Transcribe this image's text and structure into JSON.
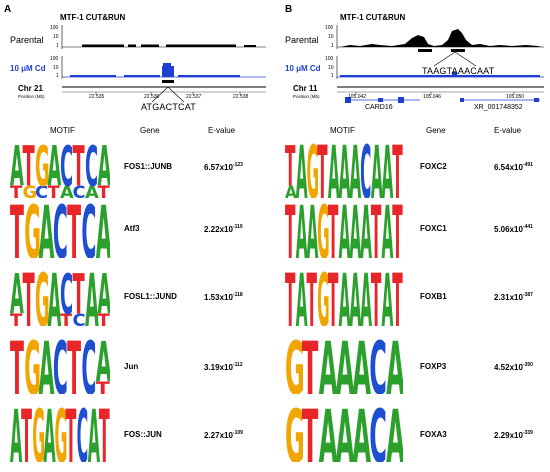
{
  "panelA": {
    "letter": "A",
    "title": "MTF-1 CUT&RUN",
    "tracks": [
      {
        "label": "Parental",
        "ticks": [
          "100",
          "10",
          "1"
        ]
      },
      {
        "label": "10 μM Cd",
        "ticks": [
          "100",
          "10",
          "1"
        ]
      }
    ],
    "chromosome": "Chr 21",
    "position_label": "Position (Mb)",
    "positions": [
      "22.535",
      "22.536",
      "22.537",
      "22.538"
    ],
    "sequence": "ATGACTCAT"
  },
  "panelB": {
    "letter": "B",
    "title": "MTF-1 CUT&RUN",
    "tracks": [
      {
        "label": "Parental",
        "ticks": [
          "100",
          "10",
          "1"
        ]
      },
      {
        "label": "10 μM Cd",
        "ticks": [
          "100",
          "10",
          "1"
        ]
      }
    ],
    "chromosome": "Chr 11",
    "position_label": "Position (Mb)",
    "positions": [
      "105.042",
      "105.046",
      "105.050"
    ],
    "sequence": "TAAGTAAACAAT",
    "genes": [
      "CARD16",
      "XR_001748352"
    ]
  },
  "tableA": {
    "headers": {
      "motif": "MOTIF",
      "gene": "Gene",
      "evalue": "E-value"
    },
    "rows": [
      {
        "gene": "FOS1::JUNB",
        "mant": "6.57x10",
        "exp": "-123"
      },
      {
        "gene": "Atf3",
        "mant": "2.22x10",
        "exp": "-119"
      },
      {
        "gene": "FOSL1::JUND",
        "mant": "1.53x10",
        "exp": "-118"
      },
      {
        "gene": "Jun",
        "mant": "3.19x10",
        "exp": "-112"
      },
      {
        "gene": "FOS::JUN",
        "mant": "2.27x10",
        "exp": "-109"
      }
    ]
  },
  "tableB": {
    "headers": {
      "motif": "MOTIF",
      "gene": "Gene",
      "evalue": "E-value"
    },
    "rows": [
      {
        "gene": "FOXC2",
        "mant": "6.54x10",
        "exp": "-491"
      },
      {
        "gene": "FOXC1",
        "mant": "5.06x10",
        "exp": "-441"
      },
      {
        "gene": "FOXB1",
        "mant": "2.31x10",
        "exp": "-387"
      },
      {
        "gene": "FOXP3",
        "mant": "4.52x10",
        "exp": "-350"
      },
      {
        "gene": "FOXA3",
        "mant": "2.29x10",
        "exp": "-339"
      }
    ]
  },
  "colors": {
    "A": "#2ca02c",
    "C": "#1f4fd1",
    "G": "#f0a500",
    "T": "#e8262a",
    "track_blue": "#1f3fd1"
  }
}
